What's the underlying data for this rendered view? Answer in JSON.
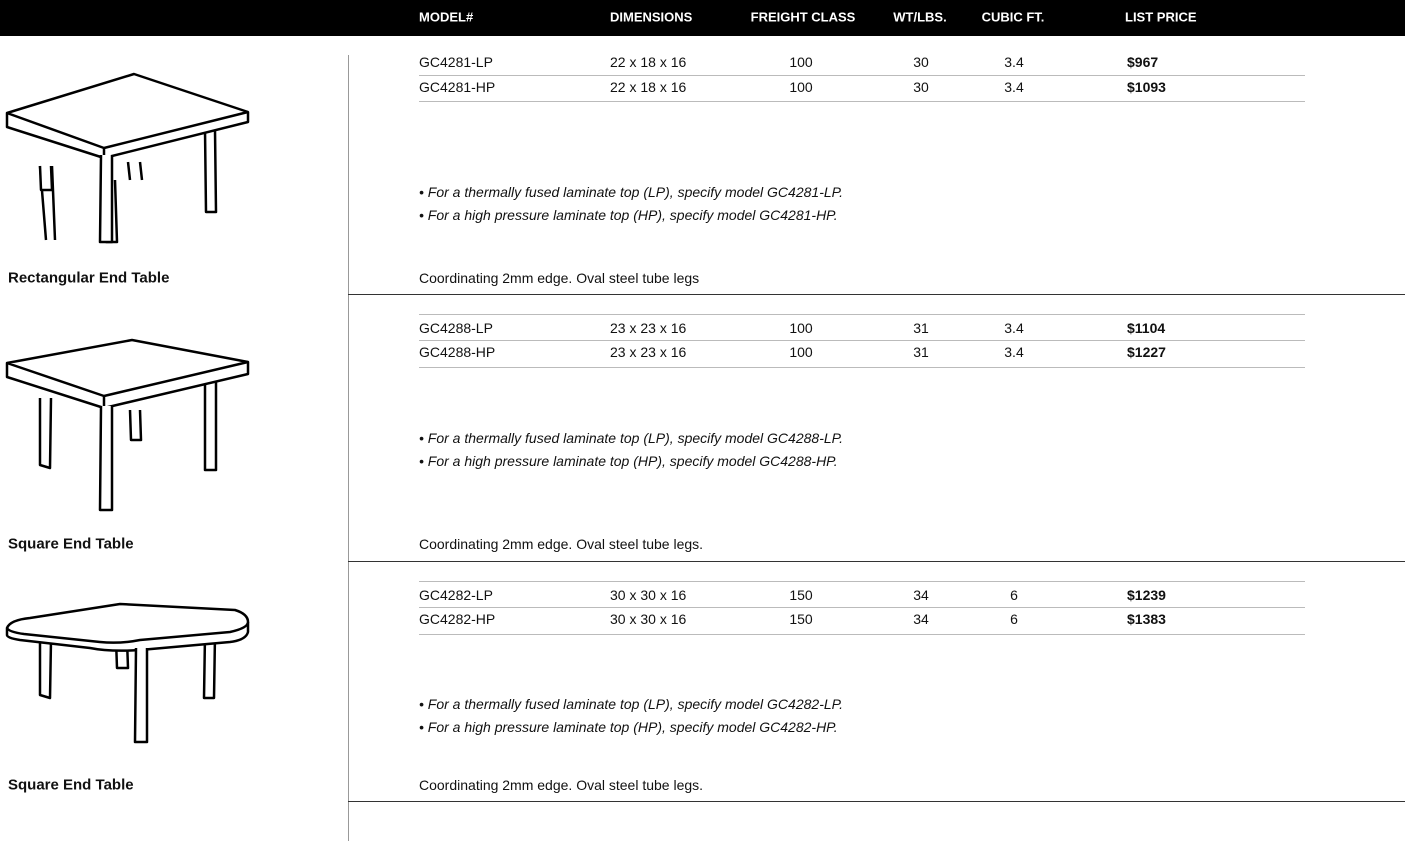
{
  "header": {
    "columns": [
      "MODEL#",
      "DIMENSIONS",
      "FREIGHT CLASS",
      "WT/LBS.",
      "CUBIC FT.",
      "LIST PRICE"
    ]
  },
  "products": [
    {
      "name": "Rectangular End Table",
      "rows": [
        [
          "GC4281-LP",
          "22 x 18 x 16",
          "100",
          "30",
          "3.4",
          "$967"
        ],
        [
          "GC4281-HP",
          "22 x 18 x 16",
          "100",
          "30",
          "3.4",
          "$1093"
        ]
      ],
      "notes": [
        "• For a thermally fused laminate top (LP), specify model GC4281-LP.",
        "• For a high pressure laminate top (HP), specify model GC4281-HP."
      ],
      "description": "Coordinating 2mm edge.  Oval steel tube legs"
    },
    {
      "name": "Square End Table",
      "rows": [
        [
          "GC4288-LP",
          "23 x 23 x 16",
          "100",
          "31",
          "3.4",
          "$1104"
        ],
        [
          "GC4288-HP",
          "23 x 23 x 16",
          "100",
          "31",
          "3.4",
          "$1227"
        ]
      ],
      "notes": [
        "• For a thermally fused laminate top (LP), specify model GC4288-LP.",
        "• For a high pressure laminate top (HP), specify model GC4288-HP."
      ],
      "description": "Coordinating 2mm edge.  Oval steel tube legs."
    },
    {
      "name": "Square End Table",
      "rows": [
        [
          "GC4282-LP",
          "30 x 30 x 16",
          "150",
          "34",
          "6",
          "$1239"
        ],
        [
          "GC4282-HP",
          "30 x 30 x 16",
          "150",
          "34",
          "6",
          "$1383"
        ]
      ],
      "notes": [
        "• For a thermally fused laminate top (LP), specify model GC4282-LP.",
        "• For a high pressure laminate top (HP), specify model GC4282-HP."
      ],
      "description": "Coordinating 2mm edge.  Oval steel tube legs."
    }
  ]
}
